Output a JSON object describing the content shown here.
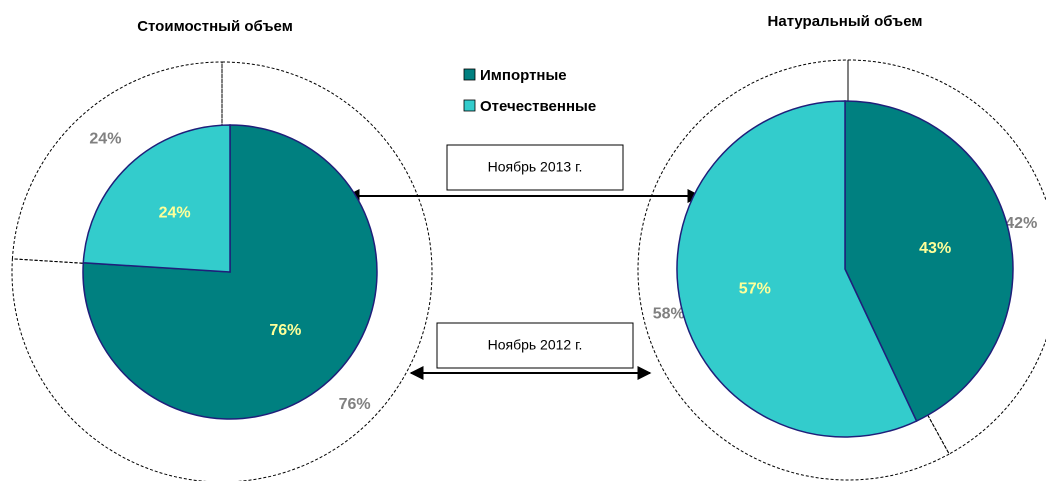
{
  "legend": {
    "entries": [
      {
        "name": "Импортные",
        "color": "#008080"
      },
      {
        "name": "Отечественные",
        "color": "#33cccc"
      }
    ]
  },
  "annotations": [
    "Ноябрь 2013 г.",
    "Ноябрь 2012 г."
  ],
  "chart_data": [
    {
      "type": "pie",
      "title": "Стоимостный объем",
      "series": [
        {
          "values": [
            76,
            24
          ],
          "value_labels": [
            "76%",
            "24%"
          ]
        },
        {
          "values": [
            76,
            24
          ],
          "value_labels": [
            "76%",
            "24%"
          ]
        }
      ]
    },
    {
      "type": "pie",
      "title": "Натуральный объем",
      "series": [
        {
          "values": [
            43,
            57
          ],
          "value_labels": [
            "43%",
            "57%"
          ]
        },
        {
          "values": [
            42,
            58
          ],
          "value_labels": [
            "42%",
            "58%"
          ]
        }
      ]
    }
  ]
}
